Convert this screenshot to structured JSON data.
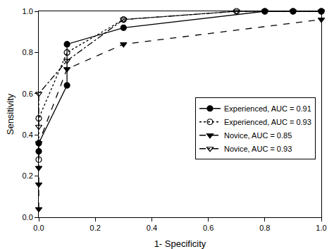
{
  "chart_data": {
    "type": "line",
    "x_label": "1- Specificity",
    "y_label": "Sensitivity",
    "xlim": [
      0,
      1
    ],
    "ylim": [
      0,
      1
    ],
    "xticks": [
      {
        "value": 0,
        "label": "0.0"
      },
      {
        "value": 0.2,
        "label": "0.2"
      },
      {
        "value": 0.4,
        "label": "0.4"
      },
      {
        "value": 0.6,
        "label": "0.6"
      },
      {
        "value": 0.8,
        "label": "0.8"
      },
      {
        "value": 1,
        "label": "1.0"
      }
    ],
    "yticks": [
      {
        "value": 0,
        "label": "0.0"
      },
      {
        "value": 0.2,
        "label": "0.2"
      },
      {
        "value": 0.4,
        "label": "0.4"
      },
      {
        "value": 0.6,
        "label": "0.6"
      },
      {
        "value": 0.8,
        "label": "0.8"
      },
      {
        "value": 1,
        "label": "1.0"
      }
    ],
    "grid": false,
    "legend": "lower right",
    "series": [
      {
        "name": "Experienced, AUC = 0.91",
        "color": "#000000",
        "marker": "circle",
        "line_style": "solid",
        "x": [
          0,
          0,
          0.1,
          0.1,
          0.3,
          0.8,
          0.9,
          1.0
        ],
        "values": [
          0.32,
          0.36,
          0.64,
          0.84,
          0.92,
          1.0,
          1.0,
          1.0
        ]
      },
      {
        "name": "Experienced, AUC = 0.93",
        "color": "#000000",
        "marker": "circle-open",
        "line_style": "dot",
        "x": [
          0,
          0,
          0.1,
          0.3,
          0.7,
          0.8,
          0.9,
          1.0
        ],
        "values": [
          0.28,
          0.48,
          0.8,
          0.96,
          1.0,
          1.0,
          1.0,
          1.0
        ]
      },
      {
        "name": "Novice, AUC = 0.85",
        "color": "#000000",
        "marker": "triangle-down",
        "line_style": "dash",
        "x": [
          0,
          0,
          0,
          0,
          0.1,
          0.3,
          1.0
        ],
        "values": [
          0.04,
          0.16,
          0.24,
          0.36,
          0.72,
          0.84,
          0.96
        ]
      },
      {
        "name": "Novice, AUC = 0.93",
        "color": "#000000",
        "marker": "triangle-down-open",
        "line_style": "dashdot",
        "x": [
          0,
          0,
          0.1,
          0.3,
          0.7,
          0.8,
          0.9,
          1.0
        ],
        "values": [
          0.44,
          0.6,
          0.76,
          0.96,
          1.0,
          1.0,
          1.0,
          1.0
        ]
      }
    ]
  }
}
